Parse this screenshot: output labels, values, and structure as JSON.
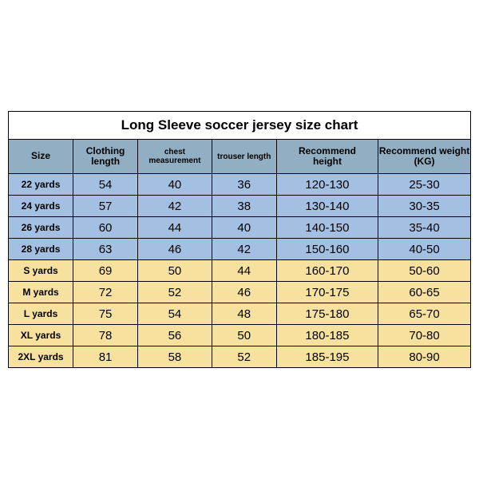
{
  "title": "Long Sleeve soccer jersey size chart",
  "colors": {
    "header_bg": "#91aec2",
    "kid_bg": "#a3c0e2",
    "adult_bg": "#f6e19e",
    "border": "#000000"
  },
  "col_widths_pct": [
    14,
    14,
    16,
    14,
    22,
    20
  ],
  "columns": [
    {
      "label": "Size",
      "small": false
    },
    {
      "label": "Clothing length",
      "small": false,
      "wrap": true
    },
    {
      "label": "chest measurement",
      "small": true
    },
    {
      "label": "trouser length",
      "small": true
    },
    {
      "label": "Recommend height",
      "small": false,
      "wrap": true
    },
    {
      "label": "Recommend weight (KG)",
      "small": false
    }
  ],
  "rows": [
    {
      "group": "kid",
      "cells": [
        "22 yards",
        "54",
        "40",
        "36",
        "120-130",
        "25-30"
      ]
    },
    {
      "group": "kid",
      "cells": [
        "24 yards",
        "57",
        "42",
        "38",
        "130-140",
        "30-35"
      ]
    },
    {
      "group": "kid",
      "cells": [
        "26 yards",
        "60",
        "44",
        "40",
        "140-150",
        "35-40"
      ]
    },
    {
      "group": "kid",
      "cells": [
        "28 yards",
        "63",
        "46",
        "42",
        "150-160",
        "40-50"
      ]
    },
    {
      "group": "adult",
      "cells": [
        "S yards",
        "69",
        "50",
        "44",
        "160-170",
        "50-60"
      ]
    },
    {
      "group": "adult",
      "cells": [
        "M yards",
        "72",
        "52",
        "46",
        "170-175",
        "60-65"
      ]
    },
    {
      "group": "adult",
      "cells": [
        "L yards",
        "75",
        "54",
        "48",
        "175-180",
        "65-70"
      ]
    },
    {
      "group": "adult",
      "cells": [
        "XL yards",
        "78",
        "56",
        "50",
        "180-185",
        "70-80"
      ]
    },
    {
      "group": "adult",
      "cells": [
        "2XL yards",
        "81",
        "58",
        "52",
        "185-195",
        "80-90"
      ]
    }
  ]
}
